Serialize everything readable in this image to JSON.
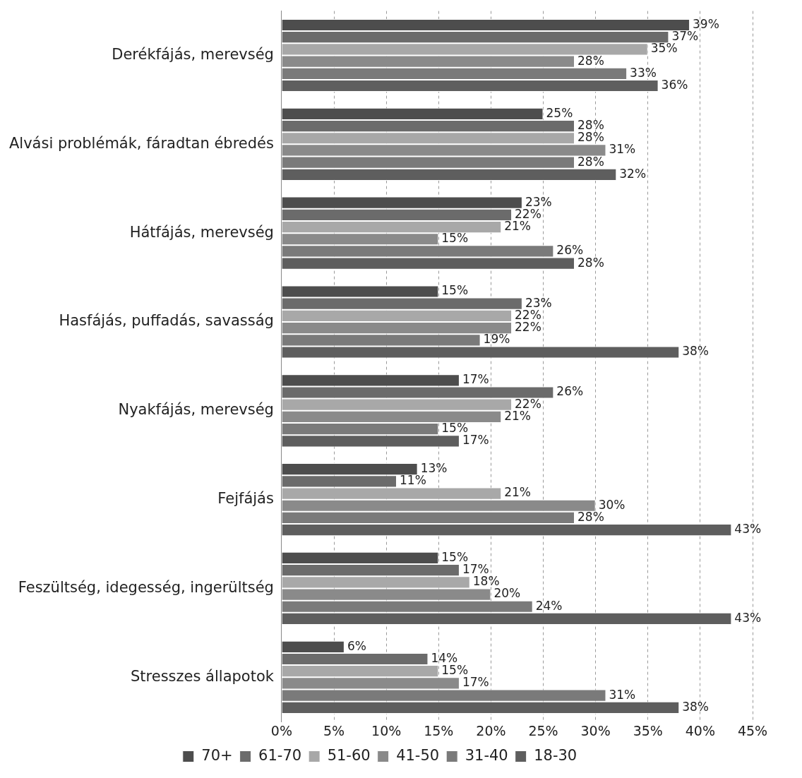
{
  "chart_data": {
    "type": "bar",
    "orientation": "horizontal",
    "categories": [
      "Derékfájás, merevség",
      "Alvási problémák, fáradtan ébredés",
      "Hátfájás, merevség",
      "Hasfájás, puffadás, savasság",
      "Nyakfájás, merevség",
      "Fejfájás",
      "Feszültség, idegesség, ingerültség",
      "Stresszes állapotok"
    ],
    "series": [
      {
        "name": "70+",
        "color": "#4d4d4d",
        "values": [
          39,
          25,
          23,
          15,
          17,
          13,
          15,
          6
        ],
        "value_labels": [
          "39%",
          "25%",
          "23%",
          "15%",
          "17%",
          "13%",
          "15%",
          "6%"
        ]
      },
      {
        "name": "61-70",
        "color": "#6b6b6b",
        "values": [
          37,
          28,
          22,
          23,
          26,
          11,
          17,
          14
        ],
        "value_labels": [
          "37%",
          "28%",
          "22%",
          "23%",
          "26%",
          "11%",
          "17%",
          "14%"
        ]
      },
      {
        "name": "51-60",
        "color": "#a8a8a8",
        "values": [
          35,
          28,
          21,
          22,
          22,
          21,
          18,
          15
        ],
        "value_labels": [
          "35%",
          "28%",
          "21%",
          "22%",
          "22%",
          "21%",
          "18%",
          "15%"
        ]
      },
      {
        "name": "41-50",
        "color": "#8a8a8a",
        "values": [
          28,
          31,
          15,
          22,
          21,
          30,
          20,
          17
        ],
        "value_labels": [
          "28%",
          "31%",
          "15%",
          "22%",
          "21%",
          "30%",
          "20%",
          "17%"
        ]
      },
      {
        "name": "31-40",
        "color": "#7a7a7a",
        "values": [
          33,
          28,
          26,
          19,
          15,
          28,
          24,
          31
        ],
        "value_labels": [
          "33%",
          "28%",
          "26%",
          "19%",
          "15%",
          "28%",
          "24%",
          "31%"
        ]
      },
      {
        "name": "18-30",
        "color": "#5e5e5e",
        "values": [
          36,
          32,
          28,
          38,
          17,
          43,
          43,
          38
        ],
        "value_labels": [
          "36%",
          "32%",
          "28%",
          "38%",
          "17%",
          "43%",
          "43%",
          "38%"
        ]
      }
    ],
    "xlim": [
      0,
      45
    ],
    "xticks": [
      {
        "value": 0,
        "label": "0%"
      },
      {
        "value": 5,
        "label": "5%"
      },
      {
        "value": 10,
        "label": "10%"
      },
      {
        "value": 15,
        "label": "15%"
      },
      {
        "value": 20,
        "label": "20%"
      },
      {
        "value": 25,
        "label": "25%"
      },
      {
        "value": 30,
        "label": "30%"
      },
      {
        "value": 35,
        "label": "35%"
      },
      {
        "value": 40,
        "label": "40%"
      },
      {
        "value": 45,
        "label": "45%"
      }
    ],
    "grid": "x",
    "legend": "bottom"
  }
}
